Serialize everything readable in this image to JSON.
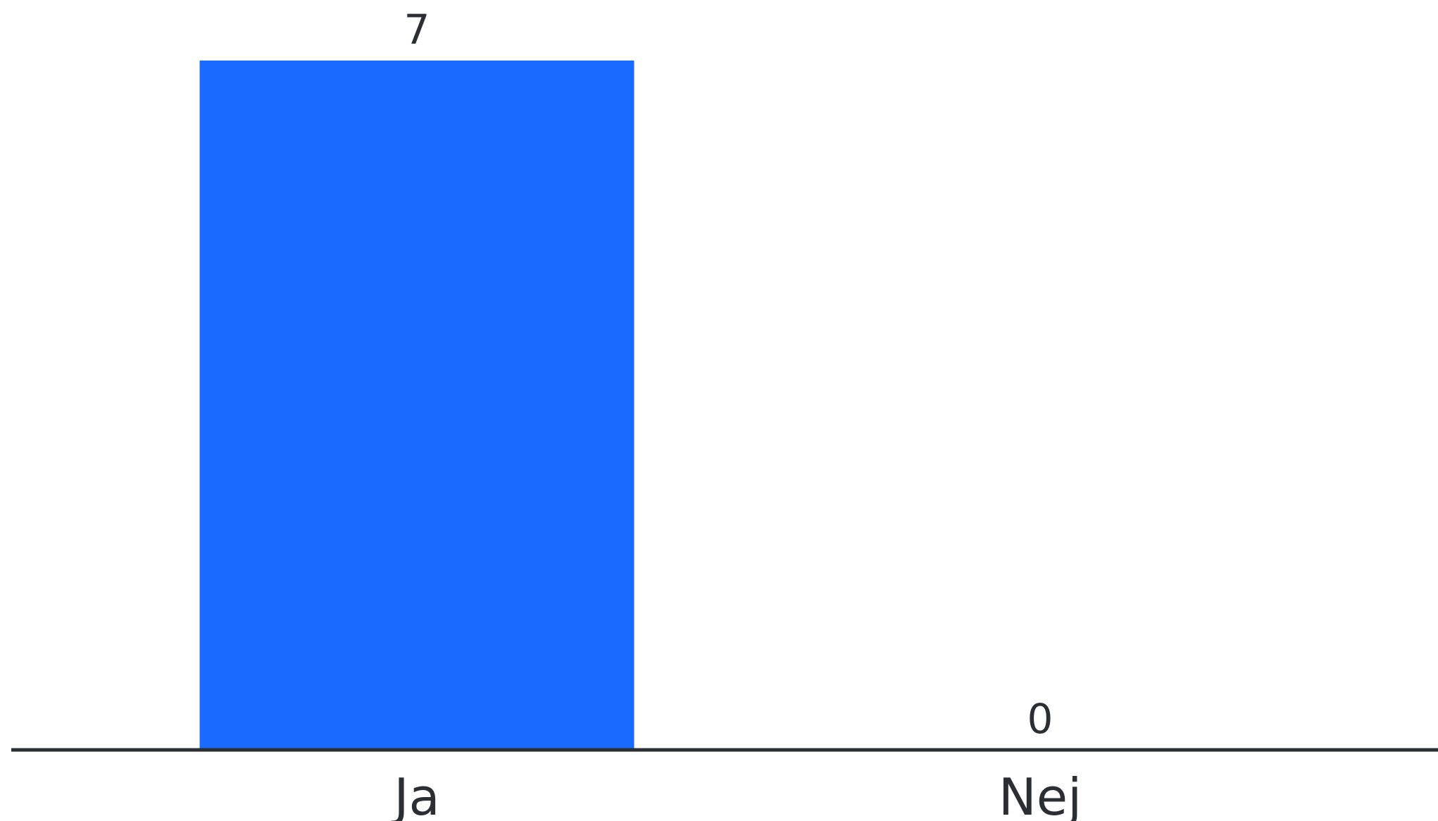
{
  "chart_data": {
    "type": "bar",
    "categories": [
      "Ja",
      "Nej"
    ],
    "values": [
      7,
      0
    ],
    "data_labels": [
      "7",
      "0"
    ],
    "ylim": [
      0,
      7
    ],
    "grid": false,
    "legend": "none",
    "bar_color": "#1a6aff",
    "axis_color": "#2b2f33",
    "text_color": "#2b2f33"
  }
}
